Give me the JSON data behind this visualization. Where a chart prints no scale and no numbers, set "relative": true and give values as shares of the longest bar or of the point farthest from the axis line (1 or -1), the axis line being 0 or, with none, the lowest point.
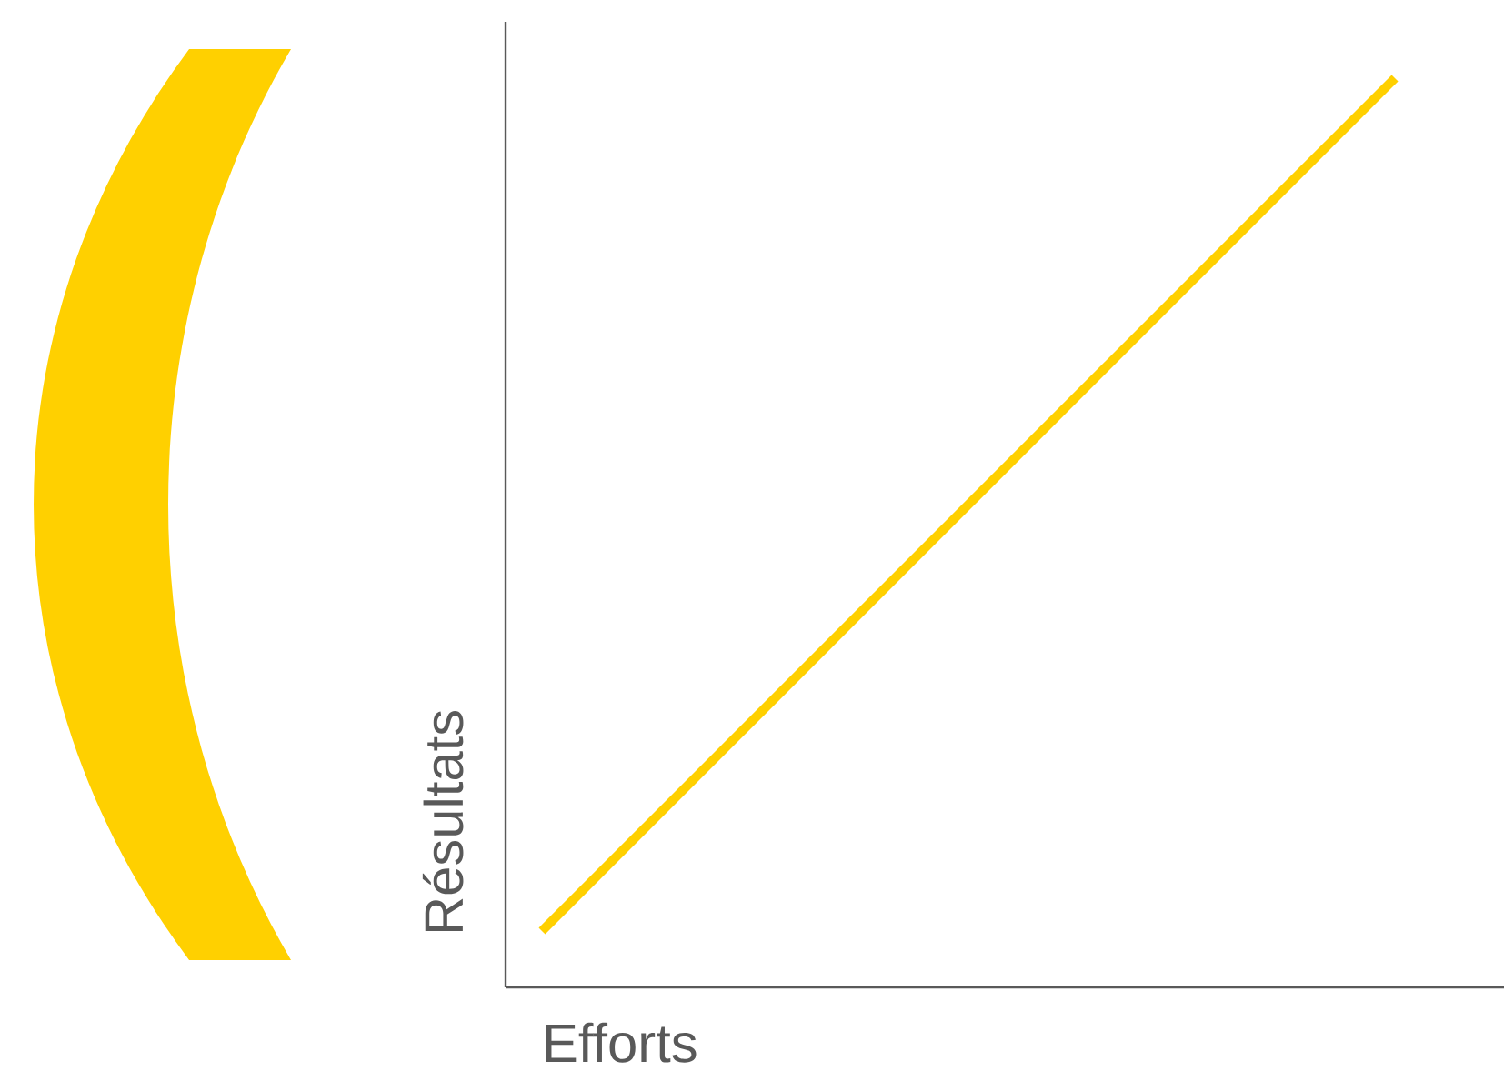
{
  "chart_data": {
    "type": "line",
    "xlabel": "Efforts",
    "ylabel": "Résultats",
    "categories": [
      null,
      null
    ],
    "relative": true,
    "series": [
      {
        "color": "#ffd000",
        "values": [
          0.062,
          1
        ]
      }
    ]
  }
}
